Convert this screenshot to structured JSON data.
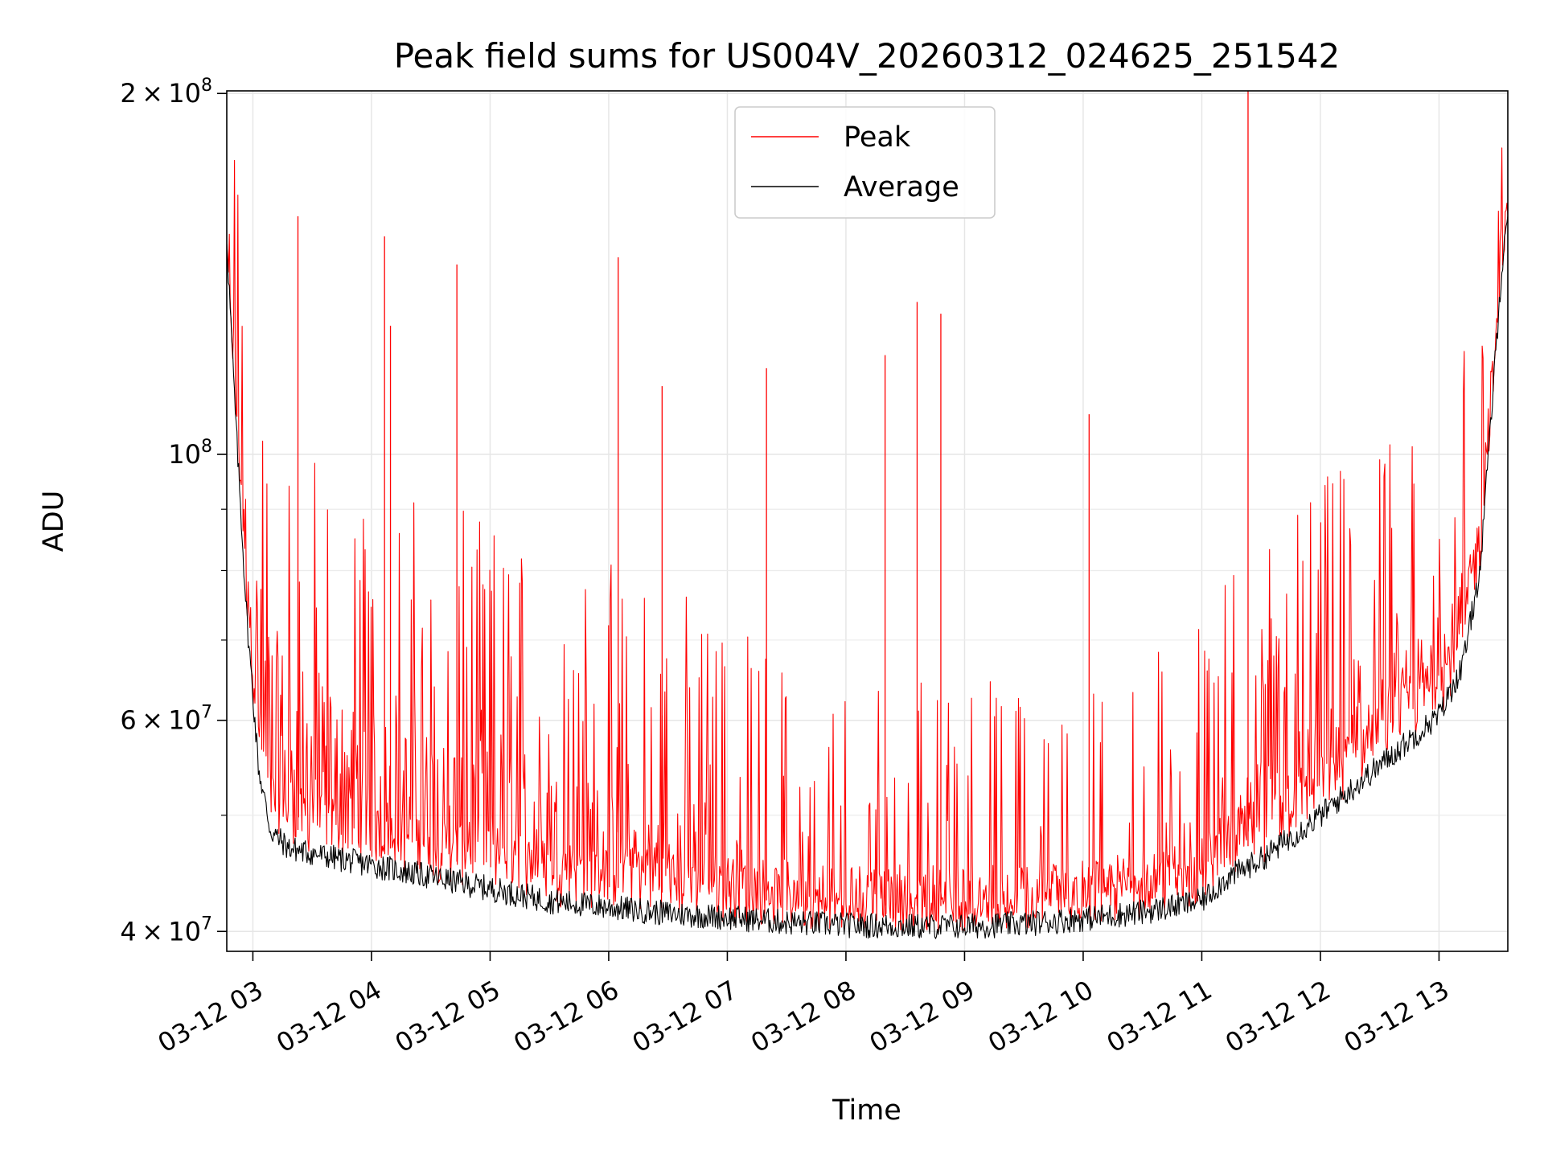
{
  "chart_data": {
    "type": "line",
    "title": "Peak field sums for US004V_20260312_024625_251542",
    "xlabel": "Time",
    "ylabel": "ADU",
    "yscale": "log",
    "ylim": [
      38500000,
      201000000
    ],
    "xlim_hours": [
      2.78,
      13.58
    ],
    "grid": true,
    "legend_position": "upper-center",
    "x_ticks": [
      {
        "hour": 3,
        "label": "03-12 03"
      },
      {
        "hour": 4,
        "label": "03-12 04"
      },
      {
        "hour": 5,
        "label": "03-12 05"
      },
      {
        "hour": 6,
        "label": "03-12 06"
      },
      {
        "hour": 7,
        "label": "03-12 07"
      },
      {
        "hour": 8,
        "label": "03-12 08"
      },
      {
        "hour": 9,
        "label": "03-12 09"
      },
      {
        "hour": 10,
        "label": "03-12 10"
      },
      {
        "hour": 11,
        "label": "03-12 11"
      },
      {
        "hour": 12,
        "label": "03-12 12"
      },
      {
        "hour": 13,
        "label": "03-12 13"
      }
    ],
    "y_ticks": [
      {
        "value": 40000000,
        "mant": "4",
        "exp": "7"
      },
      {
        "value": 60000000,
        "mant": "6",
        "exp": "7"
      },
      {
        "value": 100000000,
        "mant": "",
        "exp": "8"
      },
      {
        "value": 200000000,
        "mant": "2",
        "exp": "8"
      }
    ],
    "y_minor_ticks": [
      50000000,
      70000000,
      80000000,
      90000000
    ],
    "series": [
      {
        "name": "Peak",
        "color": "#ff0000",
        "hours": [
          2.78,
          2.85,
          2.95,
          3.1,
          3.3,
          3.6,
          4.0,
          4.5,
          5.0,
          5.5,
          6.0,
          6.5,
          7.0,
          7.5,
          8.0,
          8.5,
          9.0,
          9.5,
          10.0,
          10.5,
          11.0,
          11.5,
          12.0,
          12.5,
          13.0,
          13.2,
          13.35,
          13.45,
          13.52,
          13.58
        ],
        "values": [
          150000000,
          118000000,
          92000000,
          75000000,
          68000000,
          64000000,
          61000000,
          59000000,
          57000000,
          55000000,
          53000000,
          51000000,
          48000000,
          44500000,
          43000000,
          42800000,
          42500000,
          42500000,
          43000000,
          44500000,
          47000000,
          56000000,
          62000000,
          66000000,
          73000000,
          80000000,
          95000000,
          120000000,
          140000000,
          158000000
        ],
        "spikes": [
          {
            "hour": 3.38,
            "value": 158000000
          },
          {
            "hour": 4.11,
            "value": 152000000
          },
          {
            "hour": 4.16,
            "value": 128000000
          },
          {
            "hour": 4.72,
            "value": 144000000
          },
          {
            "hour": 6.08,
            "value": 146000000
          },
          {
            "hour": 6.45,
            "value": 114000000
          },
          {
            "hour": 7.33,
            "value": 118000000
          },
          {
            "hour": 8.33,
            "value": 121000000
          },
          {
            "hour": 8.6,
            "value": 134000000
          },
          {
            "hour": 8.8,
            "value": 131000000
          },
          {
            "hour": 10.05,
            "value": 108000000
          },
          {
            "hour": 11.39,
            "value": 201000000
          }
        ]
      },
      {
        "name": "Average",
        "color": "#000000",
        "hours": [
          2.78,
          2.85,
          2.95,
          3.05,
          3.15,
          3.3,
          3.5,
          4.0,
          4.5,
          5.0,
          5.5,
          6.0,
          6.5,
          7.0,
          7.5,
          8.0,
          8.5,
          9.0,
          9.5,
          10.0,
          10.5,
          11.0,
          11.2,
          11.5,
          12.0,
          12.5,
          13.0,
          13.2,
          13.35,
          13.45,
          13.52,
          13.58
        ],
        "values": [
          150000000,
          108000000,
          72000000,
          54000000,
          48000000,
          46500000,
          46000000,
          45000000,
          44000000,
          43000000,
          42000000,
          41500000,
          41000000,
          40700000,
          40300000,
          40100000,
          40000000,
          40000000,
          40200000,
          40600000,
          41100000,
          42000000,
          43800000,
          45500000,
          49500000,
          54500000,
          60000000,
          66000000,
          80000000,
          110000000,
          138000000,
          158000000
        ]
      }
    ]
  }
}
